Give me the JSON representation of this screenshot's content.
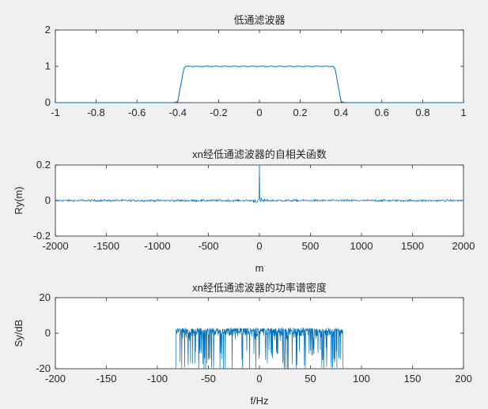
{
  "chart_data": [
    {
      "type": "line",
      "title": "低通滤波器",
      "xlabel": "",
      "ylabel": "",
      "xlim": [
        -1,
        1
      ],
      "ylim": [
        0,
        2
      ],
      "xticks": [
        "-1",
        "-0.8",
        "-0.6",
        "-0.4",
        "-0.2",
        "0",
        "0.2",
        "0.4",
        "0.6",
        "0.8",
        "1"
      ],
      "yticks": [
        "0",
        "1",
        "2"
      ],
      "x": [
        -1,
        -0.42,
        -0.4,
        -0.385,
        -0.37,
        -0.36,
        -0.3,
        0.3,
        0.36,
        0.37,
        0.385,
        0.4,
        0.42,
        1
      ],
      "y": [
        0,
        0,
        0.03,
        0.5,
        0.95,
        1.0,
        1.0,
        1.0,
        1.0,
        0.95,
        0.5,
        0.03,
        0,
        0
      ],
      "grid": false,
      "color": "#0072bd"
    },
    {
      "type": "line",
      "title": "xn经低通滤波器的自相关函数",
      "xlabel": "m",
      "ylabel": "Ry(m)",
      "xlim": [
        -2000,
        2000
      ],
      "ylim": [
        -0.2,
        0.2
      ],
      "xticks": [
        "-2000",
        "-1500",
        "-1000",
        "-500",
        "0",
        "500",
        "1000",
        "1500",
        "2000"
      ],
      "yticks": [
        "-0.2",
        "0",
        "0.2"
      ],
      "peak": {
        "x": 0,
        "y": 0.2
      },
      "noise_amplitude": 0.006,
      "grid": false,
      "color": "#0072bd"
    },
    {
      "type": "line",
      "title": "xn经低通滤波器的功率谱密度",
      "xlabel": "f/Hz",
      "ylabel": "Sy/dB",
      "xlim": [
        -200,
        200
      ],
      "ylim": [
        -20,
        20
      ],
      "xticks": [
        "-200",
        "-150",
        "-100",
        "-50",
        "0",
        "50",
        "100",
        "150",
        "200"
      ],
      "yticks": [
        "-20",
        "0",
        "20"
      ],
      "passband": [
        -82,
        82
      ],
      "band_level": 0,
      "grid": false,
      "color": "#0072bd"
    }
  ]
}
